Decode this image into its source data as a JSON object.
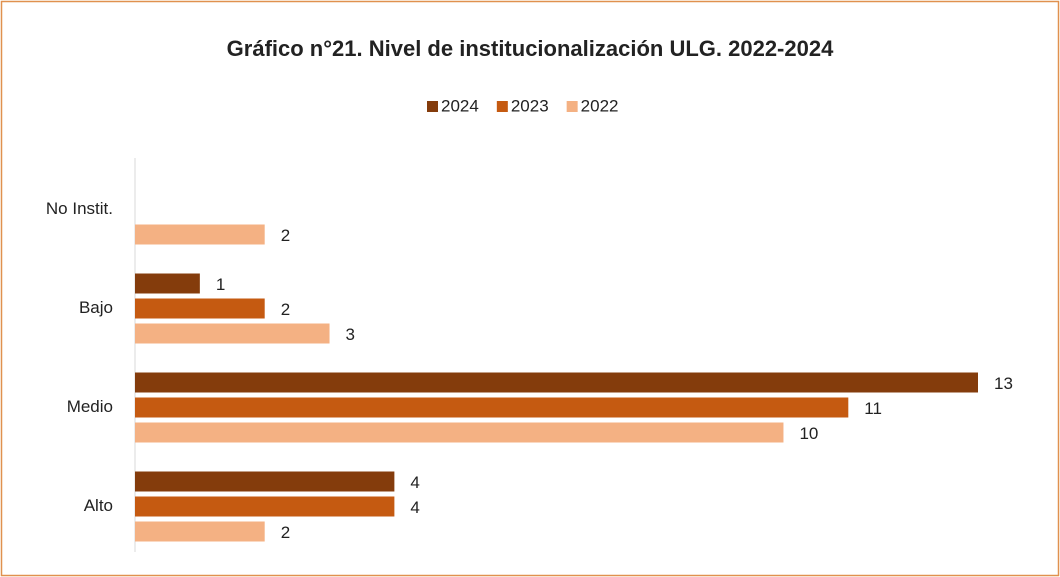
{
  "chart_data": {
    "type": "hbar",
    "title": "Gráfico n°21. Nivel de institucionalización ULG. 2022-2024",
    "categories": [
      "No Instit.",
      "Bajo",
      "Medio",
      "Alto"
    ],
    "series": [
      {
        "name": "2024",
        "color": "#843c0c",
        "values": [
          null,
          1,
          13,
          4
        ]
      },
      {
        "name": "2023",
        "color": "#c55a11",
        "values": [
          null,
          2,
          11,
          4
        ]
      },
      {
        "name": "2022",
        "color": "#f4b183",
        "values": [
          2,
          3,
          10,
          2
        ]
      }
    ],
    "legend": "top"
  }
}
